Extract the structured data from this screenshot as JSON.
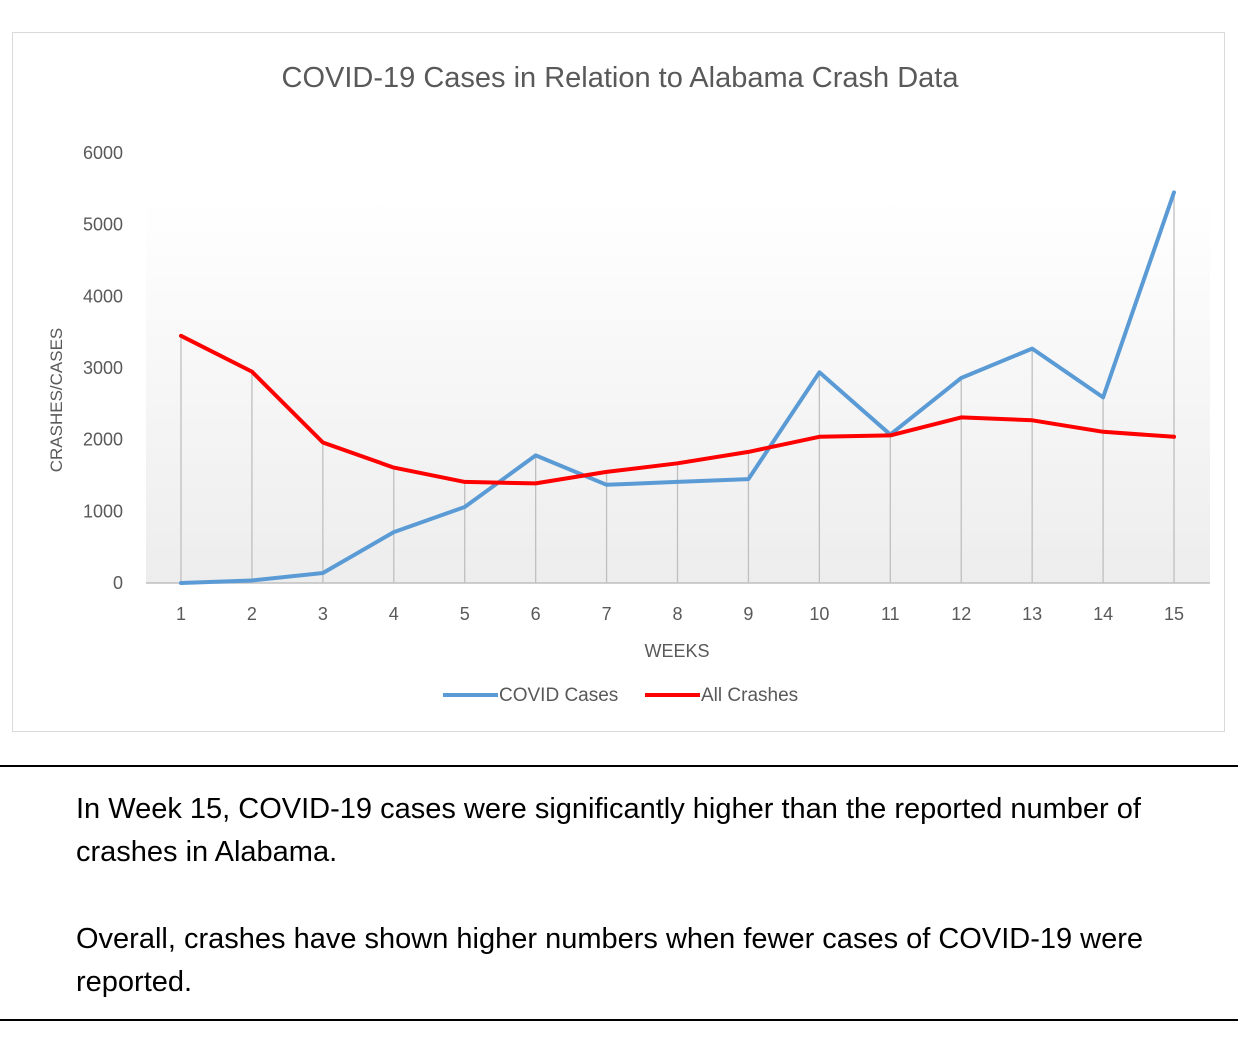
{
  "chart_data": {
    "type": "line",
    "title": "COVID-19 Cases in Relation to Alabama Crash Data",
    "xlabel": "WEEKS",
    "ylabel": "CRASHES/CASES",
    "categories": [
      "1",
      "2",
      "3",
      "4",
      "5",
      "6",
      "7",
      "8",
      "9",
      "10",
      "11",
      "12",
      "13",
      "14",
      "15"
    ],
    "ylim": [
      0,
      6000
    ],
    "yticks": [
      0,
      1000,
      2000,
      3000,
      4000,
      5000,
      6000
    ],
    "grid": "vertical drop lines",
    "legend_position": "bottom",
    "series": [
      {
        "name": "COVID Cases",
        "color": "#5b9bd5",
        "values": [
          0,
          35,
          140,
          710,
          1060,
          1780,
          1370,
          1410,
          1450,
          2940,
          2070,
          2860,
          3270,
          2590,
          5450
        ]
      },
      {
        "name": "All Crashes",
        "color": "#ff0000",
        "values": [
          3450,
          2950,
          1960,
          1610,
          1410,
          1390,
          1550,
          1670,
          1830,
          2040,
          2060,
          2310,
          2270,
          2110,
          2040
        ]
      }
    ]
  },
  "notes": [
    "In Week 15, COVID-19 cases were significantly higher than the reported number of crashes in Alabama.",
    "Overall, crashes have shown higher numbers when fewer cases of COVID-19 were reported."
  ]
}
